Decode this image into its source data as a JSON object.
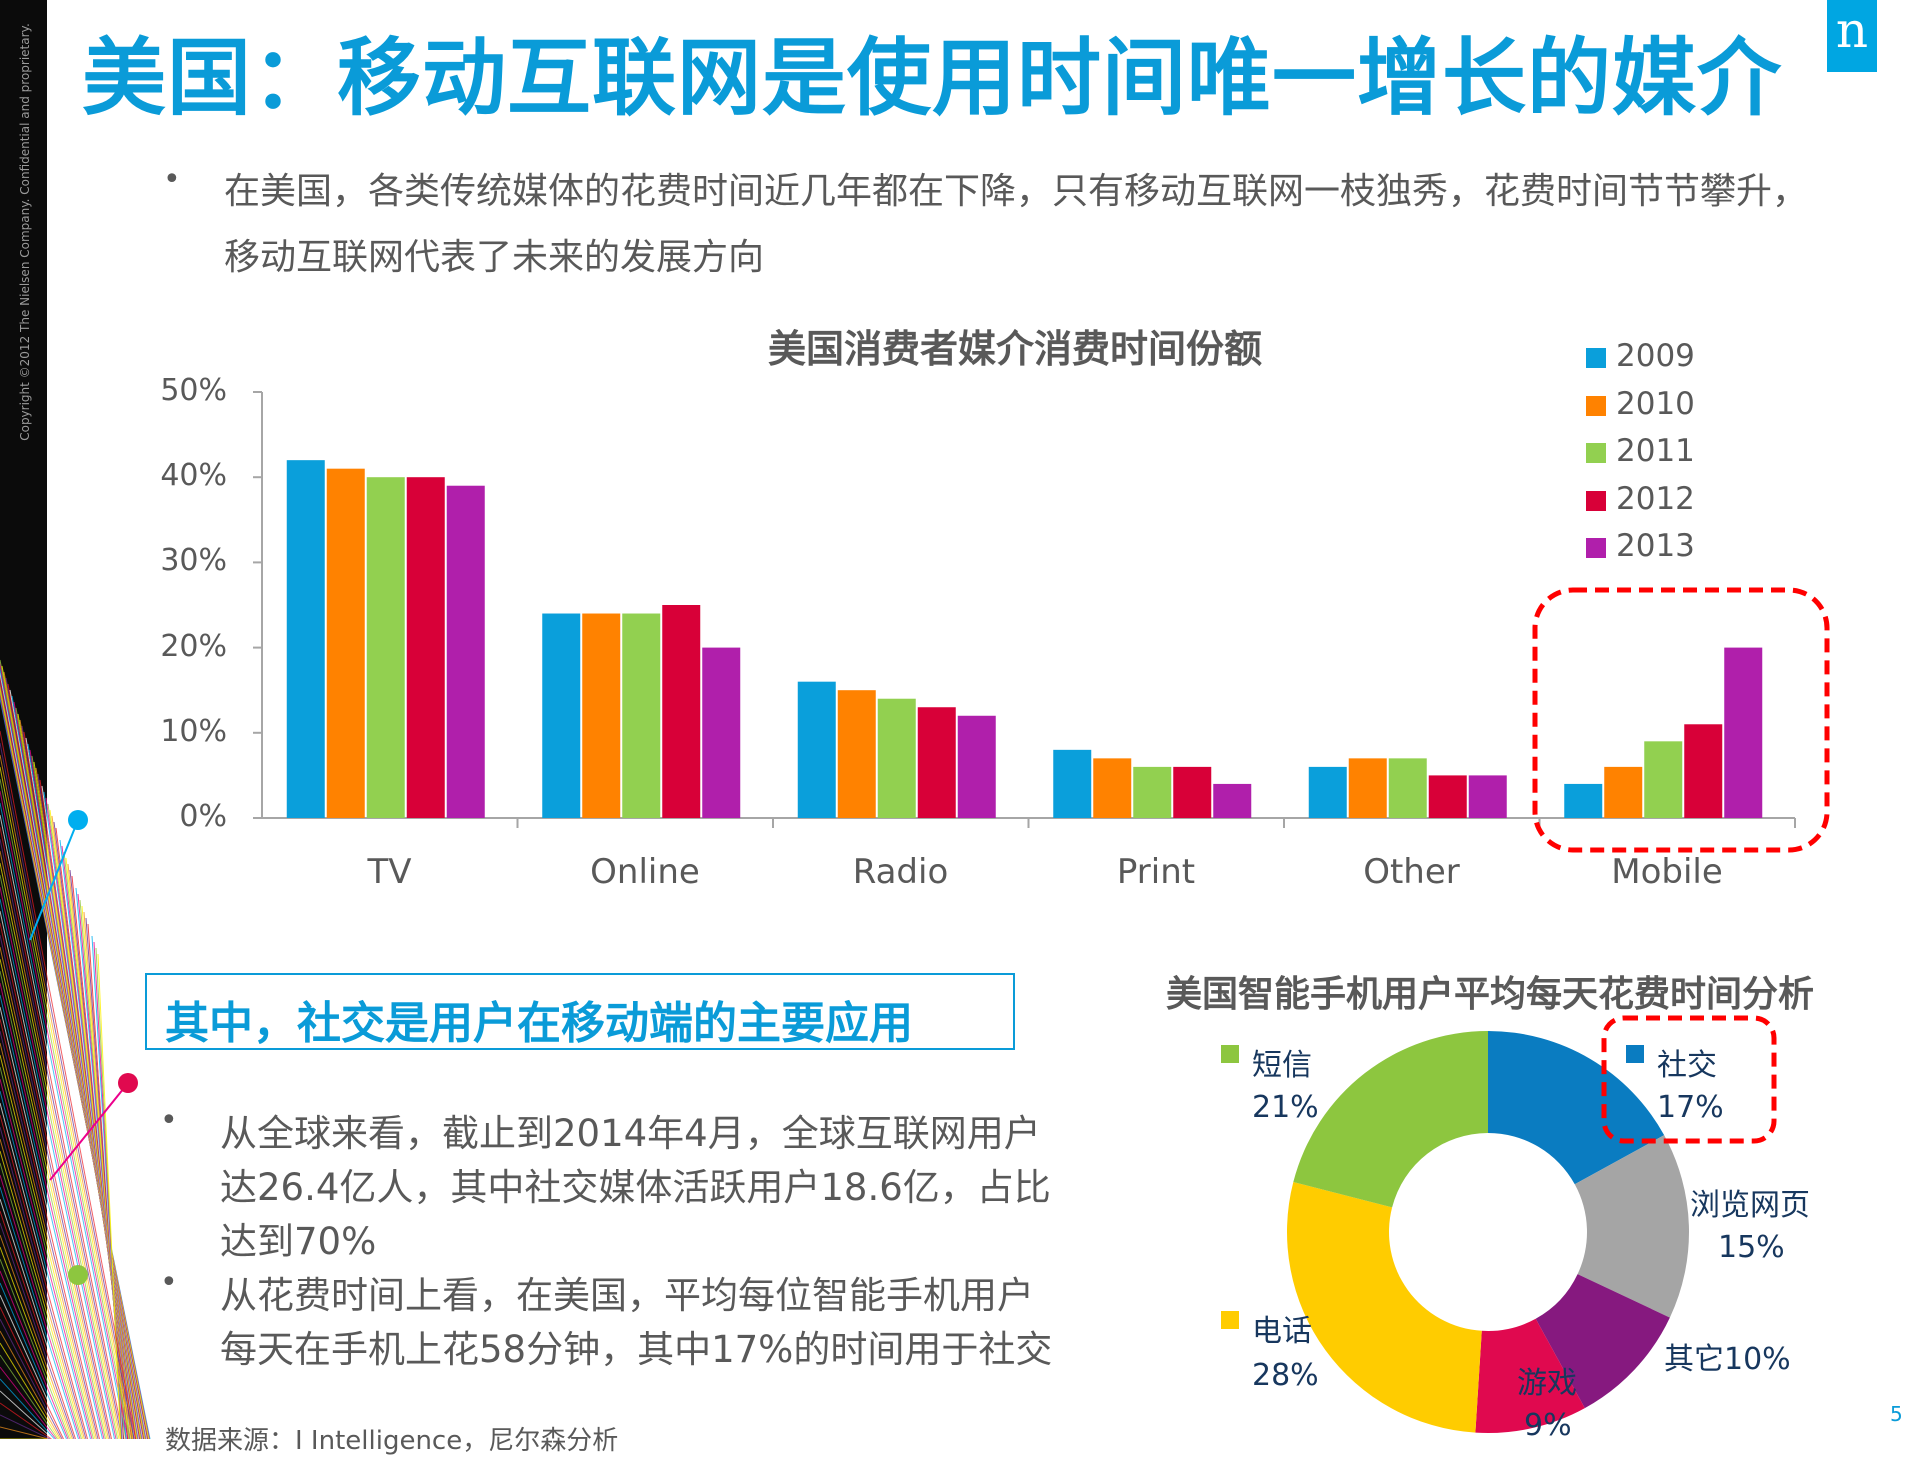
{
  "header": {
    "title": "美国：移动互联网是使用时间唯一增长的媒介",
    "logo_text": "n",
    "copyright": "Copyright ©2012 The Nielsen Company. Confidential and proprietary."
  },
  "intro": {
    "line1": "在美国，各类传统媒体的花费时间近几年都在下降，只有移动互联网一枝独秀，花费时间节节攀升，",
    "line2": "移动互联网代表了未来的发展方向"
  },
  "chart_data": [
    {
      "type": "bar",
      "title": "美国消费者媒介消费时间份额",
      "categories": [
        "TV",
        "Online",
        "Radio",
        "Print",
        "Other",
        "Mobile"
      ],
      "series": [
        {
          "name": "2009",
          "color": "#0a9fdb",
          "values": [
            42,
            24,
            16,
            8,
            6,
            4
          ]
        },
        {
          "name": "2010",
          "color": "#ff8200",
          "values": [
            41,
            24,
            15,
            7,
            7,
            6
          ]
        },
        {
          "name": "2011",
          "color": "#92d050",
          "values": [
            40,
            24,
            14,
            6,
            7,
            9
          ]
        },
        {
          "name": "2012",
          "color": "#d80038",
          "values": [
            40,
            25,
            13,
            6,
            5,
            11
          ]
        },
        {
          "name": "2013",
          "color": "#b01fab",
          "values": [
            39,
            20,
            12,
            4,
            5,
            20
          ]
        }
      ],
      "yticks": [
        "0%",
        "10%",
        "20%",
        "30%",
        "40%",
        "50%"
      ],
      "ylim": [
        0,
        50
      ],
      "unit": "%",
      "legend": "top-right",
      "grid": false,
      "highlight": "Mobile"
    },
    {
      "type": "pie",
      "title": "美国智能手机用户平均每天花费时间分析",
      "donut": true,
      "slices": [
        {
          "label": "社交",
          "value": 17,
          "display": "17%",
          "color": "#0a7cc1"
        },
        {
          "label": "浏览网页",
          "value": 15,
          "display": "15%",
          "color": "#a5a5a5"
        },
        {
          "label": "其它",
          "value": 10,
          "display": "其它10%",
          "color": "#86197f"
        },
        {
          "label": "游戏",
          "value": 9,
          "display": "9%",
          "color": "#e0094f"
        },
        {
          "label": "电话",
          "value": 28,
          "display": "28%",
          "color": "#ffcc00"
        },
        {
          "label": "短信",
          "value": 21,
          "display": "21%",
          "color": "#8dc63f"
        }
      ],
      "highlight": "社交"
    }
  ],
  "subheading": "其中，社交是用户在移动端的主要应用",
  "bullets": [
    {
      "lines": [
        "从全球来看，截止到2014年4月，全球互联网用户",
        "达26.4亿人，其中社交媒体活跃用户18.6亿，占比",
        "达到70%"
      ]
    },
    {
      "lines": [
        "从花费时间上看，在美国，平均每位智能手机用户",
        "每天在手机上花58分钟，其中17%的时间用于社交"
      ]
    }
  ],
  "source": "数据来源：I Intelligence，尼尔森分析",
  "page_number": "5",
  "bullet_char": "•"
}
